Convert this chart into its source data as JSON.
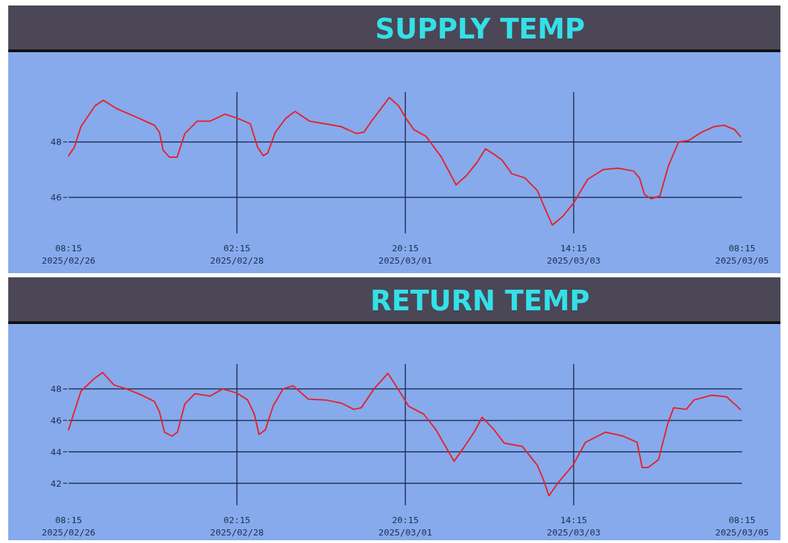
{
  "chart_data": [
    {
      "type": "line",
      "title": "SUPPLY TEMP",
      "grid": true,
      "marker": "none",
      "line_style": "solid",
      "ylim": [
        44.7,
        49.8
      ],
      "yticks": [
        46,
        48
      ],
      "xlim": [
        "2025-02-26T08:15",
        "2025-03-05T08:15"
      ],
      "xticks": [
        {
          "value": "2025-02-26T08:15",
          "label": "08:15\n2025/02/26"
        },
        {
          "value": "2025-02-28T02:15",
          "label": "02:15\n2025/02/28"
        },
        {
          "value": "2025-03-01T20:15",
          "label": "20:15\n2025/03/01"
        },
        {
          "value": "2025-03-03T14:15",
          "label": "14:15\n2025/03/03"
        },
        {
          "value": "2025-03-05T08:15",
          "label": "08:15\n2025/03/05"
        }
      ],
      "series": [
        {
          "color": "#e8202a",
          "x": [
            "2025-02-26T08:15",
            "2025-02-26T09:40",
            "2025-02-26T11:20",
            "2025-02-26T14:50",
            "2025-02-26T16:55",
            "2025-02-26T20:15",
            "2025-02-27T01:50",
            "2025-02-27T05:40",
            "2025-02-27T06:55",
            "2025-02-27T07:50",
            "2025-02-27T09:25",
            "2025-02-27T11:20",
            "2025-02-27T13:15",
            "2025-02-27T16:20",
            "2025-02-27T19:35",
            "2025-02-27T23:15",
            "2025-02-28T02:25",
            "2025-02-28T05:35",
            "2025-02-28T07:25",
            "2025-02-28T08:50",
            "2025-02-28T09:55",
            "2025-02-28T11:50",
            "2025-02-28T14:25",
            "2025-02-28T16:45",
            "2025-02-28T20:20",
            "2025-03-01T00:25",
            "2025-03-01T04:15",
            "2025-03-01T08:05",
            "2025-03-01T09:55",
            "2025-03-01T11:50",
            "2025-03-01T16:15",
            "2025-03-01T18:35",
            "2025-03-01T20:25",
            "2025-03-01T22:20",
            "2025-03-02T01:25",
            "2025-03-02T05:15",
            "2025-03-02T08:55",
            "2025-03-02T11:35",
            "2025-03-02T14:05",
            "2025-03-02T16:15",
            "2025-03-02T18:25",
            "2025-03-02T20:20",
            "2025-03-02T22:50",
            "2025-03-03T02:05",
            "2025-03-03T05:10",
            "2025-03-03T07:05",
            "2025-03-03T08:55",
            "2025-03-03T11:25",
            "2025-03-03T14:15",
            "2025-03-03T17:45",
            "2025-03-03T21:35",
            "2025-03-04T01:20",
            "2025-03-04T05:10",
            "2025-03-04T06:40",
            "2025-03-04T07:55",
            "2025-03-04T09:35",
            "2025-03-04T11:45",
            "2025-03-04T13:55",
            "2025-03-04T16:25",
            "2025-03-04T18:55",
            "2025-03-04T22:10",
            "2025-03-05T01:15",
            "2025-03-05T03:45",
            "2025-03-05T06:20",
            "2025-03-05T07:50"
          ],
          "values": [
            47.5,
            47.8,
            48.55,
            49.3,
            49.5,
            49.2,
            48.85,
            48.6,
            48.35,
            47.7,
            47.45,
            47.45,
            48.3,
            48.75,
            48.75,
            49.0,
            48.85,
            48.65,
            47.8,
            47.5,
            47.6,
            48.35,
            48.85,
            49.1,
            48.75,
            48.65,
            48.55,
            48.3,
            48.35,
            48.75,
            49.6,
            49.3,
            48.85,
            48.45,
            48.2,
            47.45,
            46.45,
            46.8,
            47.25,
            47.75,
            47.55,
            47.35,
            46.85,
            46.7,
            46.25,
            45.6,
            45.0,
            45.3,
            45.8,
            46.65,
            47.0,
            47.05,
            46.95,
            46.7,
            46.1,
            45.95,
            46.05,
            47.15,
            48.0,
            48.05,
            48.35,
            48.55,
            48.6,
            48.45,
            48.2
          ]
        }
      ]
    },
    {
      "type": "line",
      "title": "RETURN TEMP",
      "grid": true,
      "marker": "none",
      "line_style": "solid",
      "ylim": [
        40.6,
        49.6
      ],
      "yticks": [
        42,
        44,
        46,
        48
      ],
      "xlim": [
        "2025-02-26T08:15",
        "2025-03-05T08:15"
      ],
      "xticks": [
        {
          "value": "2025-02-26T08:15",
          "label": "08:15\n2025/02/26"
        },
        {
          "value": "2025-02-28T02:15",
          "label": "02:15\n2025/02/28"
        },
        {
          "value": "2025-03-01T20:15",
          "label": "20:15\n2025/03/01"
        },
        {
          "value": "2025-03-03T14:15",
          "label": "14:15\n2025/03/03"
        },
        {
          "value": "2025-03-05T08:15",
          "label": "08:15\n2025/03/05"
        }
      ],
      "series": [
        {
          "color": "#e8202a",
          "x": [
            "2025-02-26T08:15",
            "2025-02-26T09:10",
            "2025-02-26T11:20",
            "2025-02-26T14:35",
            "2025-02-26T16:45",
            "2025-02-26T19:35",
            "2025-02-26T22:45",
            "2025-02-27T02:35",
            "2025-02-27T05:40",
            "2025-02-27T06:55",
            "2025-02-27T08:10",
            "2025-02-27T10:05",
            "2025-02-27T11:25",
            "2025-02-27T13:15",
            "2025-02-27T15:45",
            "2025-02-27T19:35",
            "2025-02-27T22:40",
            "2025-02-28T02:10",
            "2025-02-28T04:55",
            "2025-02-28T06:35",
            "2025-02-28T07:45",
            "2025-02-28T09:20",
            "2025-02-28T11:15",
            "2025-02-28T13:45",
            "2025-02-28T16:15",
            "2025-02-28T20:05",
            "2025-03-01T00:25",
            "2025-03-01T04:15",
            "2025-03-01T07:25",
            "2025-03-01T09:15",
            "2025-03-01T12:25",
            "2025-03-01T15:55",
            "2025-03-01T19:10",
            "2025-03-01T21:05",
            "2025-03-02T00:50",
            "2025-03-02T03:55",
            "2025-03-02T08:25",
            "2025-03-02T10:55",
            "2025-03-02T13:25",
            "2025-03-02T15:25",
            "2025-03-02T18:25",
            "2025-03-02T20:55",
            "2025-03-03T01:25",
            "2025-03-03T05:10",
            "2025-03-03T06:45",
            "2025-03-03T08:05",
            "2025-03-03T10:15",
            "2025-03-03T14:05",
            "2025-03-03T17:10",
            "2025-03-03T22:10",
            "2025-03-04T02:35",
            "2025-03-04T06:05",
            "2025-03-04T07:20",
            "2025-03-04T08:50",
            "2025-03-04T11:25",
            "2025-03-04T13:40",
            "2025-03-04T15:10",
            "2025-03-04T18:20",
            "2025-03-04T20:15",
            "2025-03-05T00:40",
            "2025-03-05T04:25",
            "2025-03-05T06:20",
            "2025-03-05T07:50"
          ],
          "values": [
            45.4,
            46.15,
            47.85,
            48.65,
            49.05,
            48.25,
            48.0,
            47.6,
            47.2,
            46.55,
            45.25,
            45.0,
            45.25,
            47.05,
            47.7,
            47.55,
            48.0,
            47.75,
            47.3,
            46.4,
            45.1,
            45.4,
            46.9,
            48.0,
            48.2,
            47.35,
            47.3,
            47.1,
            46.7,
            46.8,
            48.0,
            49.0,
            47.7,
            46.9,
            46.4,
            45.4,
            43.4,
            44.3,
            45.25,
            46.2,
            45.4,
            44.55,
            44.35,
            43.15,
            42.2,
            41.2,
            42.0,
            43.15,
            44.6,
            45.25,
            45.0,
            44.6,
            43.0,
            43.0,
            43.5,
            45.75,
            46.8,
            46.7,
            47.3,
            47.6,
            47.5,
            47.05,
            46.7
          ]
        }
      ]
    }
  ]
}
